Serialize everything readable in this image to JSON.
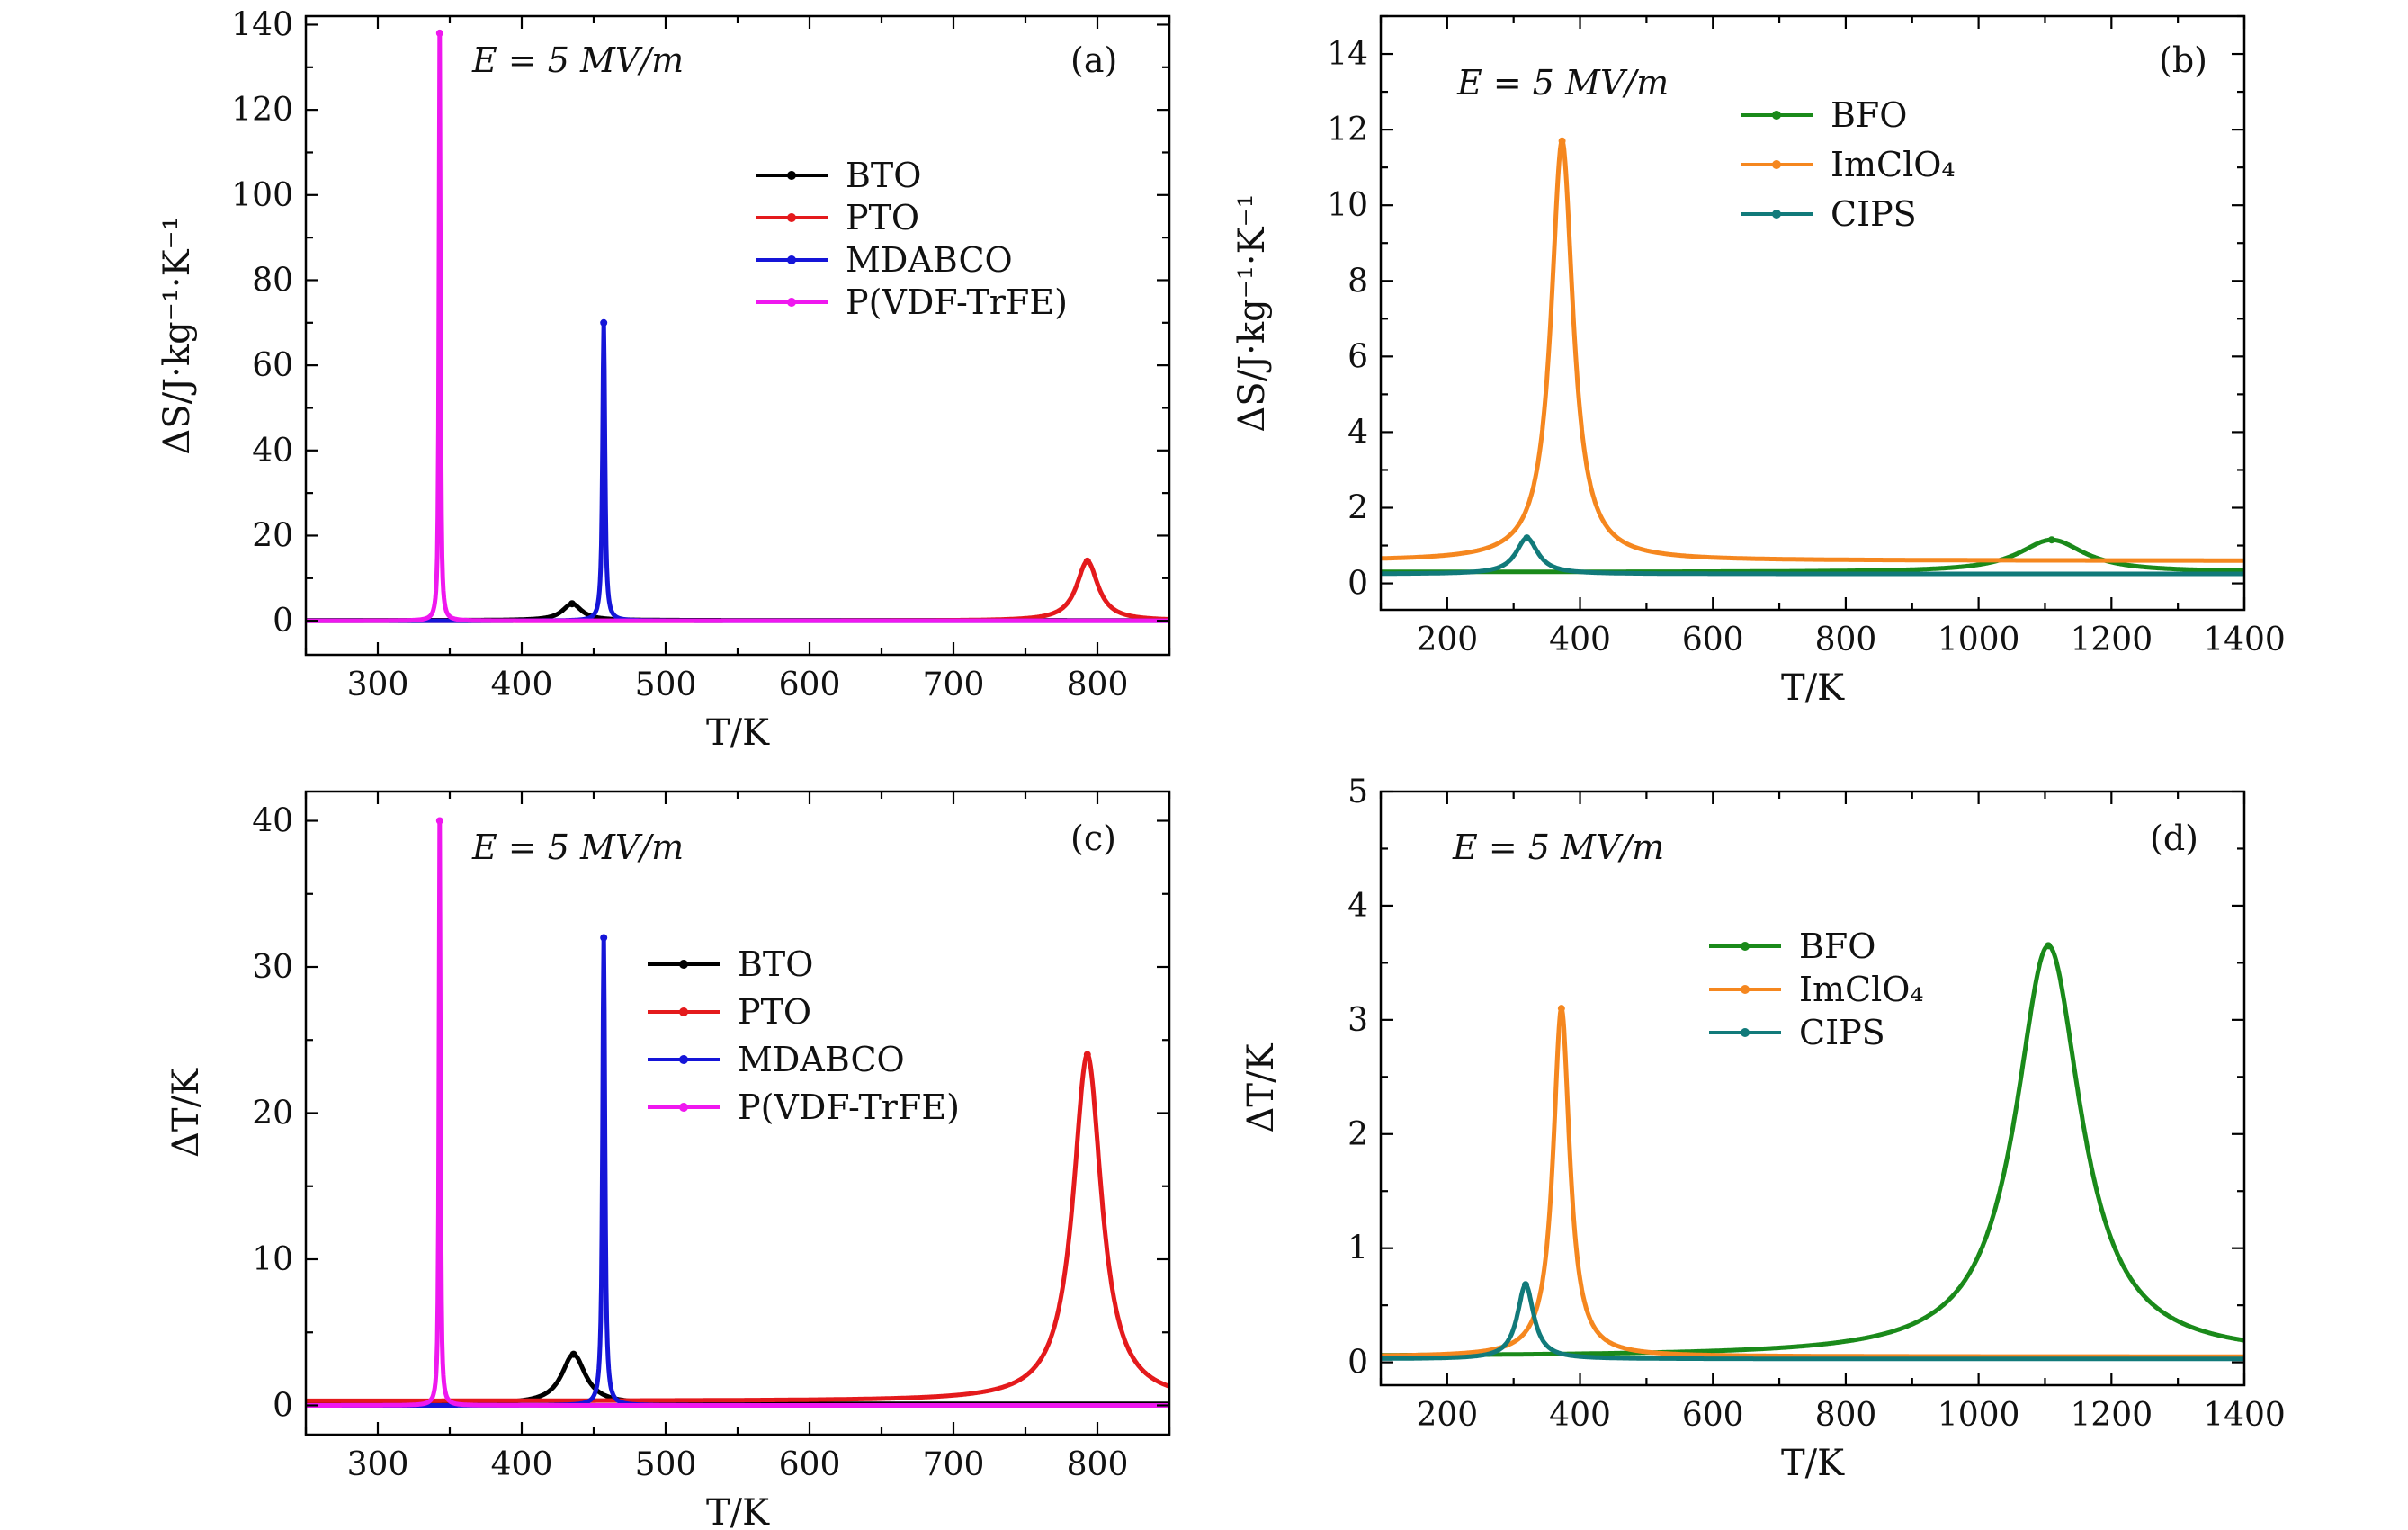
{
  "chart_data": [
    {
      "id": "a",
      "type": "line",
      "annotation": "(a)",
      "field_label": "E = 5 MV/m",
      "xlabel": "T/K",
      "ylabel": "ΔS/J·kg⁻¹·K⁻¹",
      "xlim": [
        250,
        850
      ],
      "ylim": [
        -8,
        142
      ],
      "xticks": [
        300,
        400,
        500,
        600,
        700,
        800
      ],
      "yticks": [
        0,
        20,
        40,
        60,
        80,
        100,
        120,
        140
      ],
      "legend_position": "upper-right",
      "series": [
        {
          "name": "BTO",
          "color": "#000000",
          "marker": "square",
          "peaks": [
            {
              "x": 435,
              "y": 4.0,
              "w": 8
            }
          ],
          "base": 0.1
        },
        {
          "name": "PTO",
          "color": "#e41a1c",
          "marker": "circle",
          "peaks": [
            {
              "x": 793,
              "y": 14.0,
              "w": 9
            }
          ],
          "base": 0.0
        },
        {
          "name": "MDABCO",
          "color": "#1515d8",
          "marker": "triangle-up",
          "peaks": [
            {
              "x": 457,
              "y": 70.0,
              "w": 1.0
            }
          ],
          "base": 0.0
        },
        {
          "name": "P(VDF-TrFE)",
          "color": "#ef18ef",
          "marker": "triangle-down",
          "peaks": [
            {
              "x": 343,
              "y": 138.0,
              "w": 0.6
            }
          ],
          "base": 0.0
        }
      ]
    },
    {
      "id": "b",
      "type": "line",
      "annotation": "(b)",
      "field_label": "E = 5 MV/m",
      "xlabel": "T/K",
      "ylabel": "ΔS/J·kg⁻¹·K⁻¹",
      "xlim": [
        100,
        1400
      ],
      "ylim": [
        -0.7,
        15
      ],
      "xticks": [
        200,
        400,
        600,
        800,
        1000,
        1200,
        1400
      ],
      "yticks": [
        0,
        2,
        4,
        6,
        8,
        10,
        12,
        14
      ],
      "legend_position": "upper-center",
      "series": [
        {
          "name": "BFO",
          "color": "#1a8a1a",
          "marker": "square",
          "peaks": [
            {
              "x": 1110,
              "y": 1.15,
              "w": 60
            }
          ],
          "base": 0.3
        },
        {
          "name": "ImClO₄",
          "color": "#f5871f",
          "marker": "circle",
          "peaks": [
            {
              "x": 373,
              "y": 11.7,
              "w": 20
            }
          ],
          "base": 0.6
        },
        {
          "name": "CIPS",
          "color": "#117a7a",
          "marker": "triangle-up",
          "peaks": [
            {
              "x": 320,
              "y": 1.2,
              "w": 20
            }
          ],
          "base": 0.25
        }
      ]
    },
    {
      "id": "c",
      "type": "line",
      "annotation": "(c)",
      "field_label": "E = 5 MV/m",
      "xlabel": "T/K",
      "ylabel": "ΔT/K",
      "xlim": [
        250,
        850
      ],
      "ylim": [
        -2,
        42
      ],
      "xticks": [
        300,
        400,
        500,
        600,
        700,
        800
      ],
      "yticks": [
        0,
        10,
        20,
        30,
        40
      ],
      "legend_position": "center",
      "series": [
        {
          "name": "BTO",
          "color": "#000000",
          "marker": "square",
          "peaks": [
            {
              "x": 436,
              "y": 3.5,
              "w": 10
            }
          ],
          "base": 0.1
        },
        {
          "name": "PTO",
          "color": "#e41a1c",
          "marker": "circle",
          "peaks": [
            {
              "x": 793,
              "y": 24.0,
              "w": 12
            }
          ],
          "base": 0.3
        },
        {
          "name": "MDABCO",
          "color": "#1515d8",
          "marker": "triangle-up",
          "peaks": [
            {
              "x": 457,
              "y": 32.0,
              "w": 1.0
            }
          ],
          "base": 0.0
        },
        {
          "name": "P(VDF-TrFE)",
          "color": "#ef18ef",
          "marker": "triangle-down",
          "peaks": [
            {
              "x": 343,
              "y": 40.0,
              "w": 0.6
            }
          ],
          "base": 0.0
        }
      ]
    },
    {
      "id": "d",
      "type": "line",
      "annotation": "(d)",
      "field_label": "E = 5 MV/m",
      "xlabel": "T/K",
      "ylabel": "ΔT/K",
      "xlim": [
        100,
        1400
      ],
      "ylim": [
        -0.2,
        5
      ],
      "xticks": [
        200,
        400,
        600,
        800,
        1000,
        1200,
        1400
      ],
      "yticks": [
        0,
        1,
        2,
        3,
        4,
        5
      ],
      "legend_position": "center",
      "series": [
        {
          "name": "BFO",
          "color": "#1a8a1a",
          "marker": "square",
          "peaks": [
            {
              "x": 1105,
              "y": 3.65,
              "w": 60
            }
          ],
          "base": 0.05
        },
        {
          "name": "ImClO₄",
          "color": "#f5871f",
          "marker": "circle",
          "peaks": [
            {
              "x": 372,
              "y": 3.1,
              "w": 15
            }
          ],
          "base": 0.05
        },
        {
          "name": "CIPS",
          "color": "#117a7a",
          "marker": "triangle-up",
          "peaks": [
            {
              "x": 318,
              "y": 0.68,
              "w": 15
            }
          ],
          "base": 0.03
        }
      ]
    }
  ]
}
